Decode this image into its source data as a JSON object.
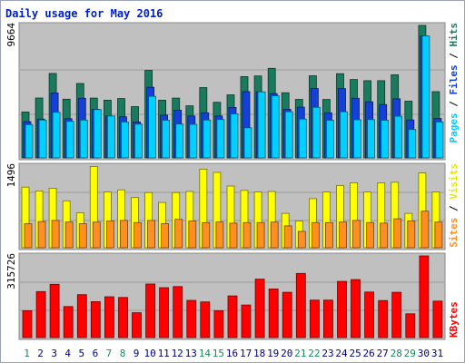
{
  "chart_data": [
    {
      "type": "bar",
      "title": "Daily usage for May 2016",
      "categories": [
        "1",
        "2",
        "3",
        "4",
        "5",
        "6",
        "7",
        "8",
        "9",
        "10",
        "11",
        "12",
        "13",
        "14",
        "15",
        "16",
        "17",
        "18",
        "19",
        "20",
        "21",
        "22",
        "23",
        "24",
        "25",
        "26",
        "27",
        "28",
        "29",
        "30",
        "31"
      ],
      "weekend_days": [
        "1",
        "7",
        "8",
        "14",
        "15",
        "21",
        "22",
        "28",
        "29"
      ],
      "ymax_label": "9664",
      "ymax": 9664,
      "series": [
        {
          "name": "Hits",
          "color": "#1a7a5e",
          "values": [
            3350,
            4370,
            6160,
            4280,
            5430,
            4360,
            4210,
            4330,
            3740,
            6390,
            4210,
            4360,
            3800,
            5130,
            4060,
            4600,
            5930,
            5980,
            6530,
            4750,
            4270,
            5990,
            4260,
            6140,
            5720,
            5630,
            5630,
            6060,
            4140,
            9664,
            4830
          ]
        },
        {
          "name": "Files",
          "color": "#1240d8",
          "values": [
            2640,
            2830,
            4740,
            2860,
            4350,
            3540,
            3060,
            3000,
            2620,
            5150,
            3120,
            3480,
            3060,
            3290,
            3060,
            3680,
            4830,
            4820,
            4690,
            3540,
            3700,
            5060,
            3290,
            5060,
            4350,
            4090,
            3890,
            4310,
            2770,
            8890,
            2870
          ]
        },
        {
          "name": "Pages",
          "color": "#00d0ff",
          "values": [
            2430,
            2760,
            3330,
            2670,
            2760,
            3530,
            3060,
            2620,
            2460,
            4490,
            2750,
            2470,
            2450,
            2760,
            2800,
            3210,
            2200,
            4810,
            4530,
            3370,
            2830,
            3690,
            2750,
            3370,
            2780,
            2790,
            2750,
            3040,
            2070,
            8890,
            2620
          ]
        }
      ]
    },
    {
      "type": "bar",
      "ymax_label": "1496",
      "ymax": 1496,
      "series": [
        {
          "name": "Visits",
          "color": "#ffff00",
          "values": [
            1110,
            1040,
            1090,
            860,
            640,
            1490,
            1020,
            1060,
            920,
            1010,
            830,
            1010,
            1030,
            1440,
            1380,
            1130,
            1050,
            1020,
            1030,
            630,
            490,
            900,
            1020,
            1140,
            1190,
            1020,
            1190,
            1200,
            630,
            1370,
            1020
          ]
        },
        {
          "name": "Sites",
          "color": "#ff9020",
          "values": [
            440,
            480,
            500,
            470,
            440,
            470,
            490,
            500,
            460,
            500,
            440,
            520,
            490,
            460,
            470,
            450,
            460,
            460,
            470,
            400,
            300,
            460,
            460,
            470,
            500,
            460,
            450,
            530,
            490,
            670,
            470
          ]
        }
      ]
    },
    {
      "type": "bar",
      "ymax_label": "315726",
      "ymax": 315726,
      "series": [
        {
          "name": "KBytes",
          "color": "#ff0000",
          "values": [
            104000,
            178000,
            206000,
            120000,
            166000,
            139000,
            158000,
            155000,
            96000,
            207000,
            193000,
            197000,
            144000,
            138000,
            104000,
            161000,
            126000,
            226000,
            188000,
            175000,
            248000,
            145000,
            145000,
            217000,
            224000,
            176000,
            143000,
            175000,
            92000,
            315726,
            141000
          ]
        }
      ]
    }
  ]
}
